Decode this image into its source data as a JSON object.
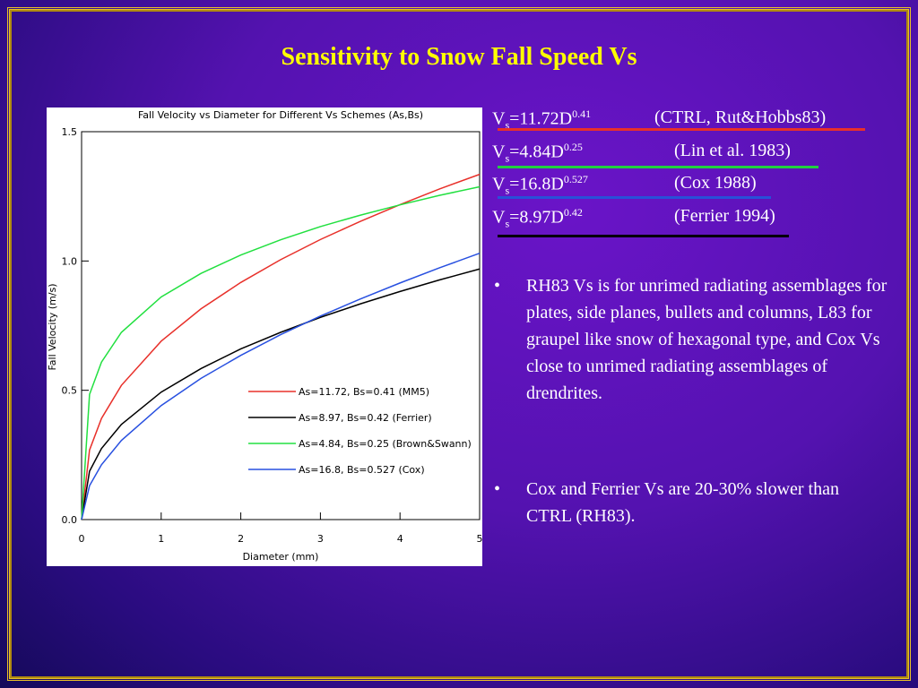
{
  "title": "Sensitivity to Snow Fall Speed Vs",
  "equations": [
    {
      "v": "V",
      "sub": "s",
      "coef": "=11.72D",
      "exp": "0.41",
      "ref": "(CTRL, Rut&Hobbs83)",
      "color": "#e8302a"
    },
    {
      "v": "V",
      "sub": "s",
      "coef": "=4.84D",
      "exp": "0.25",
      "ref": "(Lin et al. 1983)",
      "color": "#22d040"
    },
    {
      "v": "V",
      "sub": "s",
      "coef": "=16.8D",
      "exp": "0.527",
      "ref": "(Cox 1988)",
      "color": "#2850d8"
    },
    {
      "v": "V",
      "sub": "s",
      "coef": "=8.97D",
      "exp": "0.42",
      "ref": "(Ferrier 1994)",
      "color": "#000000"
    }
  ],
  "bullets": [
    "RH83 Vs is for unrimed radiating assemblages for plates, side planes, bullets and columns, L83 for graupel like snow of hexagonal type, and Cox Vs close to unrimed radiating assemblages of drendrites.",
    "Cox and Ferrier Vs are 20-30% slower than CTRL (RH83)."
  ],
  "chart_data": {
    "type": "line",
    "title": "Fall Velocity vs Diameter for Different Vs Schemes (As,Bs)",
    "xlabel": "Diameter (mm)",
    "ylabel": "Fall Velocity (m/s)",
    "x": [
      0,
      0.1,
      0.25,
      0.5,
      1,
      1.5,
      2,
      2.5,
      3,
      3.5,
      4,
      4.5,
      5
    ],
    "series": [
      {
        "name": "As=11.72, Bs=0.41 (MM5)",
        "color": "#e8302a",
        "values": [
          0,
          0.269,
          0.391,
          0.519,
          0.69,
          0.815,
          0.917,
          1.005,
          1.083,
          1.153,
          1.218,
          1.279,
          1.335
        ]
      },
      {
        "name": "As=8.97, Bs=0.42 (Ferrier)",
        "color": "#000000",
        "values": [
          0,
          0.187,
          0.275,
          0.368,
          0.493,
          0.584,
          0.66,
          0.724,
          0.782,
          0.834,
          0.882,
          0.927,
          0.969
        ]
      },
      {
        "name": "As=4.84, Bs=0.25 (Brown&Swann)",
        "color": "#22e040",
        "values": [
          0,
          0.484,
          0.609,
          0.724,
          0.861,
          0.952,
          1.023,
          1.082,
          1.133,
          1.177,
          1.217,
          1.254,
          1.287
        ]
      },
      {
        "name": "As=16.8, Bs=0.527 (Cox)",
        "color": "#2850e0",
        "values": [
          0,
          0.131,
          0.212,
          0.306,
          0.441,
          0.546,
          0.635,
          0.715,
          0.787,
          0.853,
          0.915,
          0.974,
          1.03
        ]
      }
    ],
    "xlim": [
      0,
      5
    ],
    "ylim": [
      0,
      1.5
    ],
    "xticks": [
      0,
      1,
      2,
      3,
      4,
      5
    ],
    "yticks": [
      {
        "value": 0,
        "label": "0.0"
      },
      0.5,
      {
        "value": 1,
        "label": "1.0"
      },
      1.5
    ]
  }
}
